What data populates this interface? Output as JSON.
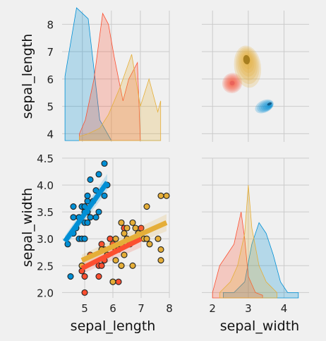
{
  "chart_data": {
    "type": "pairgrid",
    "variables": [
      "sepal_length",
      "sepal_width"
    ],
    "palette": {
      "blue": "#008fd5",
      "red": "#fc4f30",
      "yellow": "#e5ae38"
    },
    "panels": {
      "length_hist": {
        "type": "area",
        "xlabel": "",
        "ylabel": "sepal_length",
        "xlim": [
          4.3,
          8.0
        ],
        "ylim": [
          3.7,
          8.5
        ],
        "yticks": [
          "4",
          "5",
          "6",
          "7",
          "8"
        ],
        "series": [
          {
            "color": "#008fd5",
            "x": [
              4.4,
              4.4,
              4.8,
              5.2,
              5.6,
              6.0,
              6.4,
              6.8,
              7.2,
              7.6,
              7.7
            ],
            "y": [
              3.75,
              6.1,
              8.6,
              8.2,
              4.5,
              3.75,
              3.75,
              3.75,
              3.75,
              3.75,
              3.75
            ]
          },
          {
            "color": "#fc4f30",
            "x": [
              4.9,
              4.9,
              5.1,
              5.4,
              5.7,
              5.9,
              6.1,
              6.4,
              6.6,
              6.9,
              7.0
            ],
            "y": [
              3.75,
              4.0,
              4.5,
              6.0,
              8.4,
              8.0,
              6.8,
              5.2,
              6.0,
              6.6,
              3.75
            ]
          },
          {
            "color": "#e5ae38",
            "x": [
              4.9,
              4.9,
              5.2,
              5.6,
              5.9,
              6.3,
              6.7,
              7.0,
              7.3,
              7.6,
              7.7,
              7.7
            ],
            "y": [
              3.75,
              3.9,
              4.0,
              4.2,
              4.7,
              5.7,
              6.9,
              5.0,
              6.0,
              4.8,
              5.2,
              3.75
            ]
          }
        ]
      },
      "kde_top_right": {
        "type": "kde",
        "xlim": [
          1.7,
          4.7
        ],
        "ylim": [
          3.7,
          8.5
        ],
        "blobs": [
          {
            "color": "#e5ae38",
            "center": [
              2.98,
              6.45
            ],
            "spread": [
              0.75,
              1.55
            ]
          },
          {
            "color": "#fc4f30",
            "center": [
              2.55,
              5.85
            ],
            "spread": [
              0.55,
              0.75
            ]
          },
          {
            "color": "#008fd5",
            "center": [
              3.45,
              5.0
            ],
            "spread": [
              0.55,
              0.45
            ]
          }
        ]
      },
      "scatter": {
        "type": "scatter",
        "xlabel": "sepal_length",
        "ylabel": "sepal_width",
        "xlim": [
          4.2,
          8.0
        ],
        "ylim": [
          1.9,
          4.5
        ],
        "xticks": [
          "5",
          "6",
          "7",
          "8"
        ],
        "yticks": [
          "2.0",
          "2.5",
          "3.0",
          "3.5",
          "4.0",
          "4.5"
        ],
        "series": [
          {
            "color": "#008fd5",
            "points": [
              [
                4.4,
                2.9
              ],
              [
                4.5,
                2.3
              ],
              [
                4.6,
                3.1
              ],
              [
                4.6,
                3.4
              ],
              [
                4.6,
                3.6
              ],
              [
                4.7,
                3.2
              ],
              [
                4.8,
                3.0
              ],
              [
                4.8,
                3.4
              ],
              [
                4.9,
                3.0
              ],
              [
                4.9,
                3.6
              ],
              [
                5.0,
                3.0
              ],
              [
                5.0,
                3.3
              ],
              [
                5.0,
                3.5
              ],
              [
                5.0,
                3.6
              ],
              [
                5.1,
                3.3
              ],
              [
                5.1,
                3.5
              ],
              [
                5.1,
                3.7
              ],
              [
                5.1,
                3.8
              ],
              [
                5.2,
                3.4
              ],
              [
                5.2,
                4.1
              ],
              [
                5.3,
                3.7
              ],
              [
                5.4,
                3.4
              ],
              [
                5.4,
                3.9
              ],
              [
                5.5,
                3.5
              ],
              [
                5.5,
                4.2
              ],
              [
                5.7,
                3.8
              ],
              [
                5.7,
                4.4
              ],
              [
                5.8,
                4.0
              ]
            ],
            "regression": {
              "x": [
                4.3,
                5.8
              ],
              "y": [
                2.95,
                4.05
              ]
            }
          },
          {
            "color": "#fc4f30",
            "points": [
              [
                4.9,
                2.4
              ],
              [
                5.0,
                2.0
              ],
              [
                5.0,
                2.3
              ],
              [
                5.2,
                2.7
              ],
              [
                5.5,
                2.3
              ],
              [
                5.5,
                2.5
              ],
              [
                5.6,
                2.5
              ],
              [
                5.6,
                2.9
              ],
              [
                5.7,
                2.6
              ],
              [
                5.7,
                2.8
              ],
              [
                5.8,
                2.7
              ],
              [
                5.9,
                3.0
              ],
              [
                6.0,
                2.2
              ],
              [
                6.0,
                2.9
              ],
              [
                6.1,
                2.8
              ],
              [
                6.2,
                2.2
              ],
              [
                6.3,
                2.5
              ],
              [
                6.4,
                3.2
              ],
              [
                6.6,
                2.9
              ],
              [
                6.7,
                3.0
              ],
              [
                6.9,
                3.1
              ],
              [
                7.0,
                3.2
              ]
            ],
            "regression": {
              "x": [
                4.9,
                7.0
              ],
              "y": [
                2.45,
                3.0
              ]
            }
          },
          {
            "color": "#e5ae38",
            "points": [
              [
                4.9,
                2.5
              ],
              [
                5.6,
                2.8
              ],
              [
                5.8,
                2.7
              ],
              [
                6.0,
                2.2
              ],
              [
                6.1,
                2.6
              ],
              [
                6.1,
                3.0
              ],
              [
                6.2,
                2.8
              ],
              [
                6.3,
                2.5
              ],
              [
                6.3,
                2.9
              ],
              [
                6.3,
                3.3
              ],
              [
                6.4,
                2.7
              ],
              [
                6.4,
                3.1
              ],
              [
                6.5,
                3.0
              ],
              [
                6.5,
                3.2
              ],
              [
                6.7,
                2.5
              ],
              [
                6.7,
                3.0
              ],
              [
                6.7,
                3.3
              ],
              [
                6.8,
                3.2
              ],
              [
                6.9,
                3.1
              ],
              [
                7.1,
                3.0
              ],
              [
                7.2,
                3.0
              ],
              [
                7.2,
                3.6
              ],
              [
                7.3,
                2.9
              ],
              [
                7.6,
                3.0
              ],
              [
                7.7,
                2.6
              ],
              [
                7.7,
                2.8
              ],
              [
                7.7,
                3.8
              ],
              [
                7.9,
                3.8
              ]
            ],
            "regression": {
              "x": [
                4.9,
                7.9
              ],
              "y": [
                2.6,
                3.3
              ]
            }
          }
        ]
      },
      "width_hist": {
        "type": "area",
        "xlabel": "sepal_width",
        "ylabel": "",
        "xlim": [
          1.7,
          4.7
        ],
        "ylim": [
          1.9,
          4.5
        ],
        "xticks": [
          "2",
          "3",
          "4"
        ],
        "series": [
          {
            "color": "#008fd5",
            "x": [
              2.3,
              2.3,
              2.6,
              2.9,
              3.1,
              3.3,
              3.5,
              3.7,
              3.9,
              4.1,
              4.4,
              4.4
            ],
            "y": [
              1.9,
              2.0,
              2.0,
              2.2,
              2.9,
              3.3,
              3.1,
              2.7,
              2.2,
              2.0,
              2.0,
              1.9
            ]
          },
          {
            "color": "#fc4f30",
            "x": [
              2.0,
              2.0,
              2.2,
              2.4,
              2.6,
              2.8,
              2.9,
              3.0,
              3.2,
              3.4,
              3.4
            ],
            "y": [
              1.9,
              2.0,
              2.5,
              2.7,
              2.9,
              3.5,
              3.0,
              2.3,
              2.0,
              1.95,
              1.9
            ]
          },
          {
            "color": "#e5ae38",
            "x": [
              2.2,
              2.2,
              2.5,
              2.7,
              2.8,
              2.9,
              3.0,
              3.1,
              3.3,
              3.5,
              3.8,
              3.8
            ],
            "y": [
              1.9,
              2.0,
              2.2,
              2.5,
              2.8,
              3.1,
              4.0,
              3.2,
              2.5,
              2.2,
              2.0,
              1.9
            ]
          }
        ]
      }
    }
  }
}
